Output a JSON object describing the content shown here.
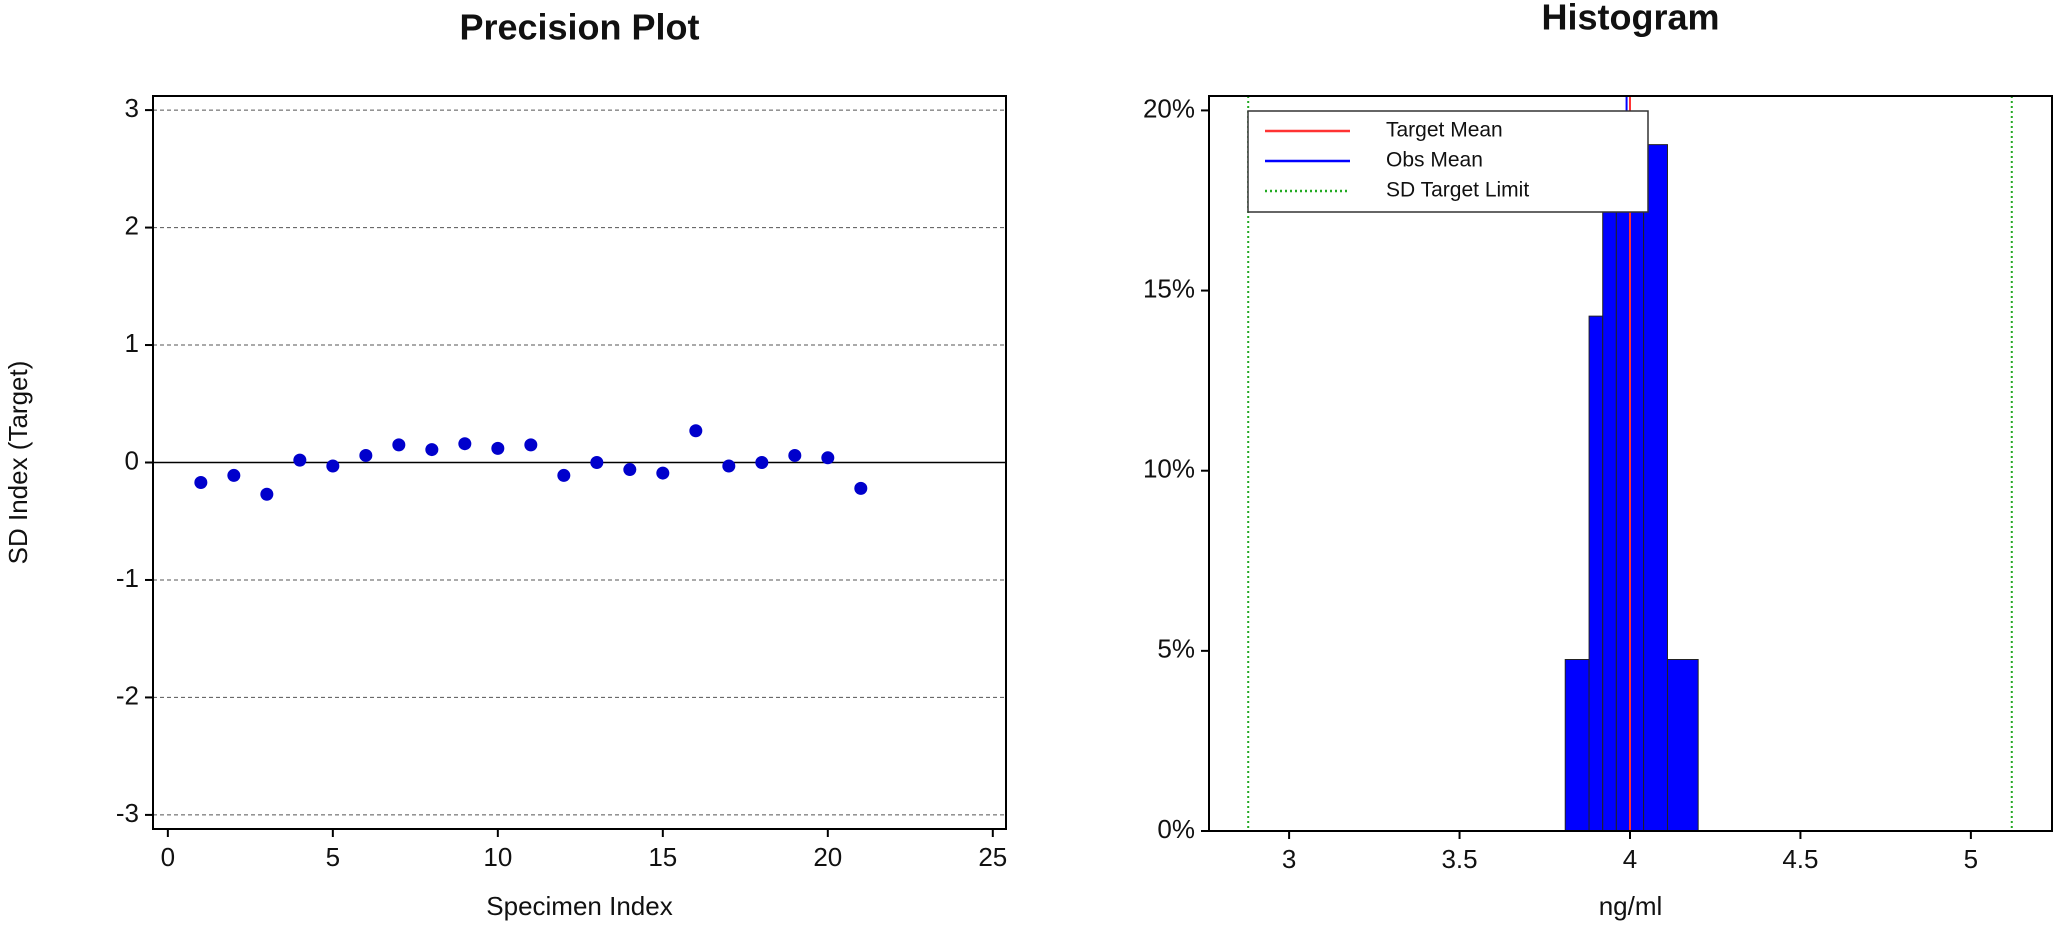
{
  "chart_data": [
    {
      "type": "scatter",
      "title": "Precision Plot",
      "x_label": "Specimen Index",
      "y_label": "SD Index (Target)",
      "x": [
        1,
        2,
        3,
        4,
        5,
        6,
        7,
        8,
        9,
        10,
        11,
        12,
        13,
        14,
        15,
        16,
        17,
        18,
        19,
        20,
        21
      ],
      "values": [
        -0.17,
        -0.11,
        -0.27,
        0.02,
        -0.03,
        0.06,
        0.15,
        0.11,
        0.16,
        0.12,
        0.15,
        -0.11,
        0.0,
        -0.06,
        -0.09,
        0.27,
        -0.03,
        0.0,
        0.06,
        0.04,
        -0.22
      ],
      "color": "#0000cc",
      "xlim": [
        -0.45,
        25.4
      ],
      "xticks": [
        0,
        5,
        10,
        15,
        20,
        25
      ],
      "ylim": [
        -3.12,
        3.12
      ],
      "yticks": [
        -3,
        -2,
        -1,
        0,
        1,
        2,
        3
      ],
      "grid": true,
      "hline": 0
    },
    {
      "type": "histogram",
      "title": "Histogram",
      "x_label": "ng/ml",
      "bins": [
        3.81,
        3.88,
        3.92,
        3.96,
        4.0,
        4.04,
        4.11,
        4.2
      ],
      "values": [
        4.76,
        14.29,
        19.05,
        19.05,
        19.05,
        19.05,
        4.76
      ],
      "color": "#0000ff",
      "xlim": [
        2.765,
        5.238
      ],
      "xticks": [
        3,
        3.5,
        4,
        4.5,
        5
      ],
      "ylim": [
        0,
        20.4
      ],
      "yticks": [
        {
          "value": 0,
          "label": "0%"
        },
        {
          "value": 5,
          "label": "5%"
        },
        {
          "value": 10,
          "label": "10%"
        },
        {
          "value": 15,
          "label": "15%"
        },
        {
          "value": 20,
          "label": "20%"
        }
      ],
      "lines": [
        {
          "name": "Target Mean",
          "color": "#ff3333",
          "x": [
            4.0
          ],
          "style": "solid"
        },
        {
          "name": "Obs Mean",
          "color": "#0000ff",
          "x": [
            3.99
          ],
          "style": "solid"
        },
        {
          "name": "SD Target Limit",
          "color": "#22aa22",
          "x": [
            2.88,
            5.12
          ],
          "style": "dotted"
        }
      ],
      "legend": "upper left"
    }
  ]
}
